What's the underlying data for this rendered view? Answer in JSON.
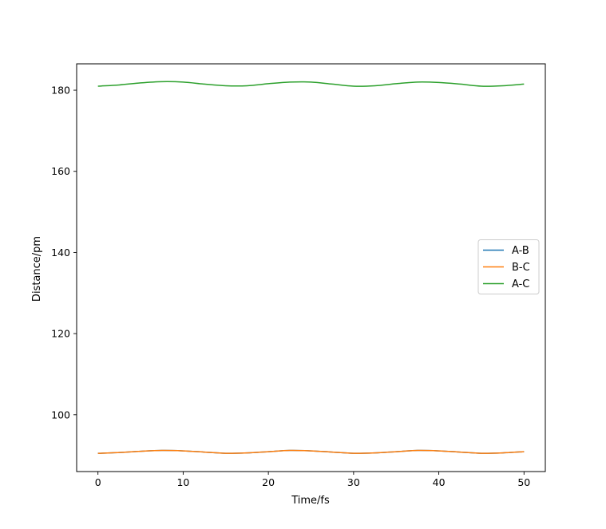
{
  "chart_data": {
    "type": "line",
    "xlabel": "Time/fs",
    "ylabel": "Distance/pm",
    "xlim": [
      -2.5,
      52.5
    ],
    "ylim": [
      86.0,
      186.5
    ],
    "xticks": [
      0,
      10,
      20,
      30,
      40,
      50
    ],
    "yticks": [
      100,
      120,
      140,
      160,
      180
    ],
    "grid": false,
    "legend_position": "center-right",
    "x": [
      0,
      2.5,
      5,
      7.5,
      10,
      12.5,
      15,
      17.5,
      20,
      22.5,
      25,
      27.5,
      30,
      32.5,
      35,
      37.5,
      40,
      42.5,
      45,
      47.5,
      50
    ],
    "series": [
      {
        "name": "A-B",
        "color": "#1f77b4",
        "values": [
          90.5,
          90.7,
          91.0,
          91.2,
          91.1,
          90.8,
          90.5,
          90.6,
          90.9,
          91.2,
          91.1,
          90.8,
          90.5,
          90.6,
          90.9,
          91.2,
          91.1,
          90.8,
          90.5,
          90.6,
          90.9
        ]
      },
      {
        "name": "B-C",
        "color": "#ff7f0e",
        "values": [
          90.5,
          90.7,
          91.0,
          91.2,
          91.1,
          90.8,
          90.5,
          90.6,
          90.9,
          91.2,
          91.1,
          90.8,
          90.5,
          90.6,
          90.9,
          91.2,
          91.1,
          90.8,
          90.5,
          90.6,
          90.9
        ]
      },
      {
        "name": "A-C",
        "color": "#2ca02c",
        "values": [
          181.0,
          181.3,
          181.8,
          182.1,
          182.0,
          181.5,
          181.1,
          181.1,
          181.6,
          182.0,
          182.0,
          181.5,
          181.0,
          181.1,
          181.6,
          182.0,
          181.9,
          181.5,
          181.0,
          181.1,
          181.5
        ]
      }
    ]
  }
}
